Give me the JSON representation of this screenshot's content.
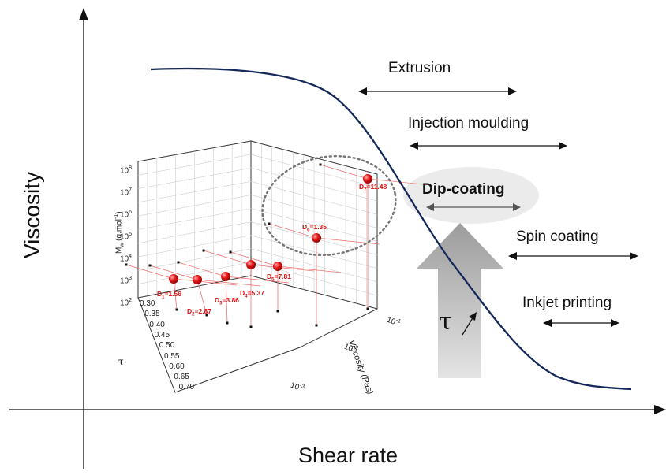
{
  "axes": {
    "y_title": "Viscosity",
    "x_title": "Shear rate"
  },
  "processes": {
    "extrusion": "Extrusion",
    "injection": "Injection moulding",
    "dip": "Dip-coating",
    "spin": "Spin coating",
    "inkjet": "Inkjet printing"
  },
  "tau_symbol": "τ",
  "inset": {
    "mw_label": "Mw (g.mol-1)",
    "mw_label_main": "M",
    "mw_label_sub": "w",
    "mw_label_rest": " (g.mol",
    "mw_label_sup": "-1",
    "mw_label_end": ")",
    "mw_ticks": [
      "10",
      "10",
      "10",
      "10",
      "10",
      "10",
      "10"
    ],
    "mw_tick_exps": [
      "8",
      "7",
      "6",
      "5",
      "4",
      "3",
      "2"
    ],
    "tau_axis_label": "τ",
    "tau_ticks": [
      "0.30",
      "0.35",
      "0.40",
      "0.45",
      "0.50",
      "0.55",
      "0.60",
      "0.65",
      "0.70"
    ],
    "visc_label": "Viscosity (Pas)",
    "visc_ticks": [
      "10",
      "10",
      "10"
    ],
    "visc_tick_exps": [
      "-1",
      "-2",
      "-3"
    ],
    "points": [
      {
        "label": "D1=1.56",
        "main": "D",
        "sub": "1",
        "val": "=1.56"
      },
      {
        "label": "D2=2.87",
        "main": "D",
        "sub": "2",
        "val": "=2.87"
      },
      {
        "label": "D3=3.86",
        "main": "D",
        "sub": "3",
        "val": "=3.86"
      },
      {
        "label": "D4=5.37",
        "main": "D",
        "sub": "4",
        "val": "=5.37"
      },
      {
        "label": "D5=7.81",
        "main": "D",
        "sub": "5",
        "val": "=7.81"
      },
      {
        "label": "D6=1.35",
        "main": "D",
        "sub": "6",
        "val": "=1.35"
      },
      {
        "label": "D7=11.48",
        "main": "D",
        "sub": "7",
        "val": "=11.48"
      }
    ]
  },
  "colors": {
    "curve": "#14285a",
    "axis": "#111111",
    "points": "#e01515",
    "arrow_fill": "#a8a8a8",
    "dip_bg": "#ebebeb"
  }
}
